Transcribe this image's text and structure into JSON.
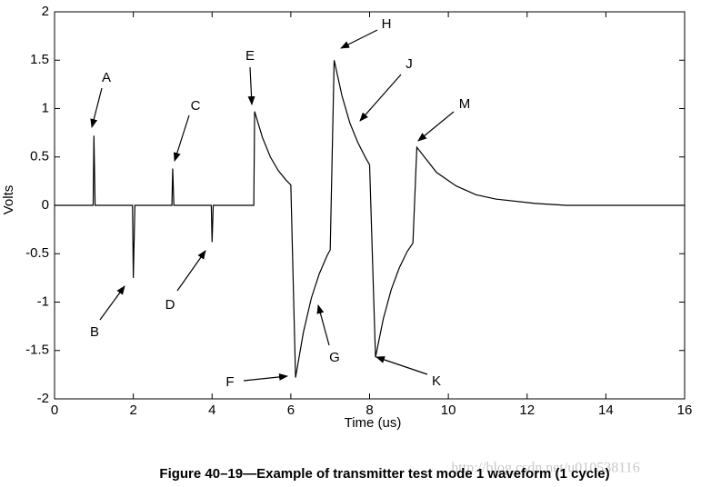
{
  "chart_data": {
    "type": "line",
    "caption": "Figure 40–19—Example of transmitter test mode 1 waveform (1 cycle)",
    "watermark": "http://blog.csdn.net/u010538116",
    "xlabel": "Time (us)",
    "ylabel": "Volts",
    "color": "#000000",
    "x": [
      0,
      0.98,
      1.0,
      1.03,
      1.98,
      2.0,
      2.04,
      2.98,
      3.0,
      3.03,
      3.98,
      4.0,
      4.03,
      5.06,
      5.08,
      5.28,
      5.48,
      5.68,
      5.88,
      6.0,
      6.12,
      6.32,
      6.52,
      6.72,
      6.92,
      7.0,
      7.1,
      7.3,
      7.5,
      7.7,
      7.9,
      8.0,
      8.15,
      8.35,
      8.55,
      8.75,
      8.95,
      9.1,
      9.2,
      9.7,
      10.2,
      10.7,
      11.2,
      12.2,
      13.0,
      16
    ],
    "values": [
      0,
      0,
      0.72,
      0,
      0,
      -0.75,
      0,
      0,
      0.38,
      0,
      0,
      -0.38,
      0,
      0,
      0.97,
      0.7,
      0.5,
      0.36,
      0.26,
      0.21,
      -1.78,
      -1.31,
      -0.96,
      -0.71,
      -0.52,
      -0.46,
      1.5,
      1.13,
      0.85,
      0.65,
      0.49,
      0.42,
      -1.57,
      -1.17,
      -0.87,
      -0.65,
      -0.48,
      -0.39,
      0.6,
      0.34,
      0.2,
      0.11,
      0.065,
      0.02,
      0,
      0
    ],
    "annotations": [
      "A",
      "B",
      "C",
      "D",
      "E",
      "F",
      "G",
      "H",
      "J",
      "K",
      "M"
    ],
    "xlim": [
      0,
      16
    ],
    "xticks": [
      0,
      2,
      4,
      6,
      8,
      10,
      12,
      14,
      16
    ],
    "ylim": [
      -2,
      2
    ],
    "yticks": [
      -2,
      -1.5,
      -1,
      -0.5,
      0,
      0.5,
      1,
      1.5,
      2
    ],
    "grid": false
  }
}
